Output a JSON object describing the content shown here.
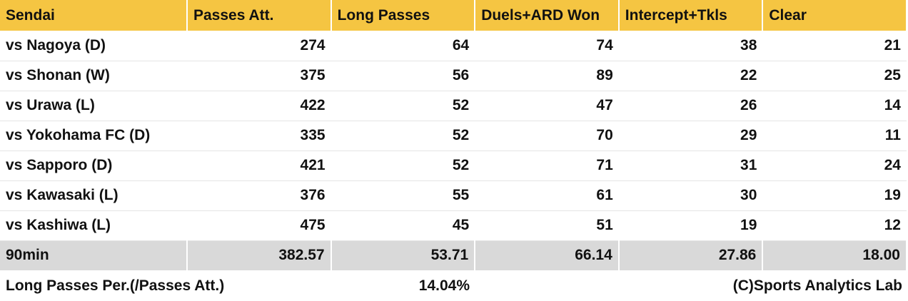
{
  "table": {
    "header": [
      "Sendai",
      "Passes Att.",
      "Long Passes",
      "Duels+ARD Won",
      "Intercept+Tkls",
      "Clear"
    ],
    "rows": [
      [
        "vs Nagoya (D)",
        "274",
        "64",
        "74",
        "38",
        "21"
      ],
      [
        "vs Shonan (W)",
        "375",
        "56",
        "89",
        "22",
        "25"
      ],
      [
        "vs Urawa (L)",
        "422",
        "52",
        "47",
        "26",
        "14"
      ],
      [
        "vs Yokohama FC (D)",
        "335",
        "52",
        "70",
        "29",
        "11"
      ],
      [
        "vs Sapporo (D)",
        "421",
        "52",
        "71",
        "31",
        "24"
      ],
      [
        "vs Kawasaki (L)",
        "376",
        "55",
        "61",
        "30",
        "19"
      ],
      [
        "vs Kashiwa (L)",
        "475",
        "45",
        "51",
        "19",
        "12"
      ]
    ],
    "summary": [
      "90min",
      "382.57",
      "53.71",
      "66.14",
      "27.86",
      "18.00"
    ]
  },
  "footer": {
    "label": "Long Passes Per.(/Passes Att.)",
    "value": "14.04%",
    "credit": "(C)Sports Analytics Lab"
  }
}
